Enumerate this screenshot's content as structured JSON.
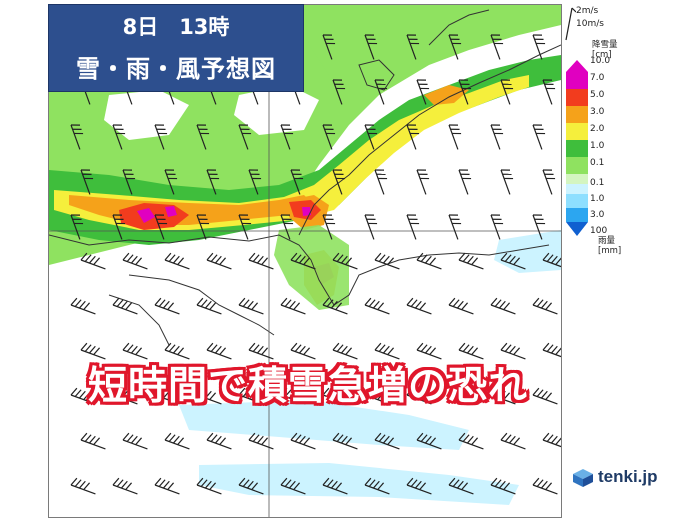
{
  "title": {
    "line1": "8日　13時",
    "line2": "雪・雨・風予想図"
  },
  "headline": "短時間で積雪急増の恐れ",
  "wind_legend": {
    "labels": [
      "2m/s",
      "10m/s"
    ]
  },
  "snow_legend": {
    "title_line1": "降雪量",
    "title_line2": "[cm]",
    "levels": [
      "10.0",
      "7.0",
      "5.0",
      "3.0",
      "2.0",
      "1.0",
      "0.1"
    ],
    "colors": [
      "#e000c0",
      "#f23c1e",
      "#f5a21a",
      "#f5ef3c",
      "#3fbe3c",
      "#8fe260",
      "#d4f5c0"
    ]
  },
  "rain_legend": {
    "title_line1": "雨量",
    "title_line2": "[mm]",
    "levels": [
      "0.1",
      "1.0",
      "3.0",
      "100"
    ],
    "colors": [
      "#ccf3ff",
      "#8edfff",
      "#2ca6f0",
      "#1060d0"
    ]
  },
  "map_colors": {
    "land_line": "#333333",
    "snow_light": "#8fe260",
    "snow_mid": "#3fbe3c",
    "snow_yellow": "#f5ef3c",
    "snow_orange": "#f5a21a",
    "snow_red": "#f23c1e",
    "snow_magenta": "#e000c0",
    "rain_light": "#ccf3ff"
  },
  "brand": {
    "text": "tenki.jp",
    "icon": "tenki-cube-icon"
  }
}
